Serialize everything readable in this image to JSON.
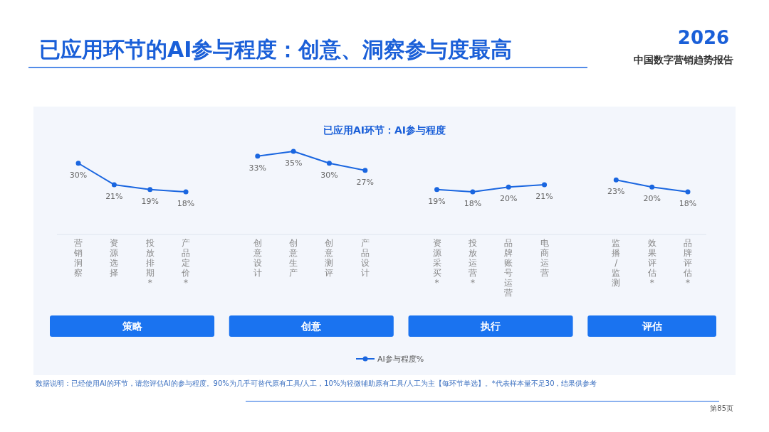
{
  "chart_data": {
    "type": "line",
    "title": "已应用环节的AI参与程度：创意、洞察参与度最高",
    "subtitle": "已应用AI环节：AI参与程度",
    "categories": [
      "营销洞察",
      "资源选择",
      "投放排期*",
      "产品定价*",
      null,
      "创意设计",
      "创意生产",
      "创意测评",
      "产品设计",
      null,
      "资源采买*",
      "投放运营*",
      "品牌账号运营",
      "电商运营",
      null,
      "监播/监测",
      "效果评估*",
      "品牌评估*"
    ],
    "series": [
      {
        "name": "AI参与程度%",
        "color": "#1a66e0",
        "values": [
          30,
          21,
          19,
          18,
          null,
          33,
          35,
          30,
          27,
          null,
          19,
          18,
          20,
          21,
          null,
          23,
          20,
          18
        ],
        "value_labels": [
          "30%",
          "21%",
          "19%",
          "18%",
          null,
          "33%",
          "35%",
          "30%",
          "27%",
          null,
          "19%",
          "18%",
          "20%",
          "21%",
          null,
          "23%",
          "20%",
          "18%"
        ]
      }
    ],
    "annotations": [
      "策略",
      "创意",
      "执行",
      "评估",
      "2026",
      "中国数字营销趋势报告",
      "数据说明：已经使用AI的环节，请您评估AI的参与程度。90%为几乎可替代原有工具/人工，10%为轻微辅助原有工具/人工为主【每环节单选】。*代表样本量不足30，结果供参考",
      "第85页"
    ],
    "legend": "bottom",
    "marker": "circle",
    "line_style": "solid"
  }
}
